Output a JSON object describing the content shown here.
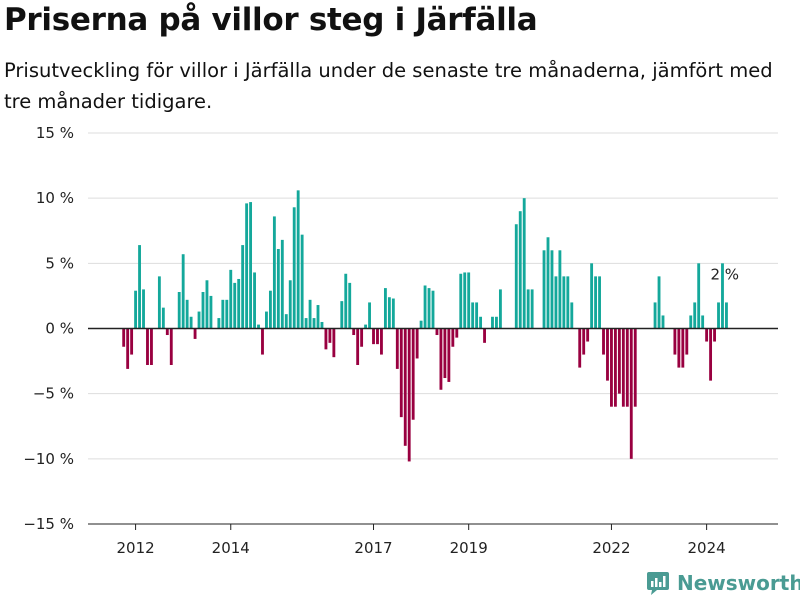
{
  "header": {
    "title": "Priserna på villor steg i Järfälla",
    "subtitle": "Prisutveckling för villor i Järfälla under de senaste tre månaderna, jämfört med tre månader tidigare."
  },
  "brand": {
    "name": "Newsworthy",
    "color": "#4a9b93"
  },
  "colors": {
    "positive": "#14a89b",
    "negative": "#990040",
    "grid": "#dddddd",
    "zero_line": "#222222"
  },
  "chart_data": {
    "type": "bar",
    "title": "",
    "xlabel": "",
    "ylabel": "",
    "ylim": [
      -15,
      15
    ],
    "yticks": [
      15,
      10,
      5,
      0,
      -5,
      -10,
      -15
    ],
    "ytick_labels": [
      "15 %",
      "10 %",
      "5 %",
      "0 %",
      "−5 %",
      "−10 %",
      "−15 %"
    ],
    "xlim": [
      "2011-01",
      "2025-07"
    ],
    "xticks": [
      {
        "x": "2012-01",
        "label": "2012"
      },
      {
        "x": "2014-01",
        "label": "2014"
      },
      {
        "x": "2017-01",
        "label": "2017"
      },
      {
        "x": "2019-01",
        "label": "2019"
      },
      {
        "x": "2022-01",
        "label": "2022"
      },
      {
        "x": "2024-01",
        "label": "2024"
      }
    ],
    "start_month": "2011-10",
    "values": [
      -1.4,
      -3.1,
      -2.0,
      2.9,
      6.4,
      3.0,
      -2.8,
      -2.8,
      0.0,
      4.0,
      1.6,
      -0.5,
      -2.8,
      0.0,
      2.8,
      5.7,
      2.2,
      0.9,
      -0.8,
      1.3,
      2.8,
      3.7,
      2.5,
      0.0,
      0.8,
      2.2,
      2.2,
      4.5,
      3.5,
      3.8,
      6.4,
      9.6,
      9.7,
      4.3,
      0.3,
      -2.0,
      1.3,
      2.9,
      8.6,
      6.1,
      6.8,
      1.1,
      3.7,
      9.3,
      10.6,
      7.2,
      0.8,
      2.2,
      0.8,
      1.8,
      0.5,
      -1.6,
      -1.1,
      -2.2,
      0.0,
      2.1,
      4.2,
      3.5,
      -0.5,
      -2.8,
      -1.4,
      0.3,
      2.0,
      -1.2,
      -1.2,
      -2.0,
      3.1,
      2.4,
      2.3,
      -3.1,
      -6.8,
      -9.0,
      -10.2,
      -7.0,
      -2.3,
      0.6,
      3.3,
      3.1,
      2.9,
      -0.5,
      -4.7,
      -3.8,
      -4.1,
      -1.4,
      -0.7,
      4.2,
      4.3,
      4.3,
      2.0,
      2.0,
      0.9,
      -1.1,
      0.0,
      0.9,
      0.9,
      3.0,
      0.0,
      0.0,
      0.0,
      8.0,
      9.0,
      10.0,
      3.0,
      3.0,
      0.0,
      0.0,
      6.0,
      7.0,
      6.0,
      4.0,
      6.0,
      4.0,
      4.0,
      2.0,
      0.0,
      -3.0,
      -2.0,
      -1.0,
      5.0,
      4.0,
      4.0,
      -2.0,
      -4.0,
      -6.0,
      -6.0,
      -5.0,
      -6.0,
      -6.0,
      -10.0,
      -6.0,
      0.0,
      0.0,
      0.0,
      0.0,
      2.0,
      4.0,
      1.0,
      0.0,
      0.0,
      -2.0,
      -3.0,
      -3.0,
      -2.0,
      1.0,
      2.0,
      5.0,
      1.0,
      -1.0,
      -4.0,
      -1.0,
      2.0,
      5.0,
      2.0
    ],
    "annotation": {
      "text": "2 %"
    }
  }
}
